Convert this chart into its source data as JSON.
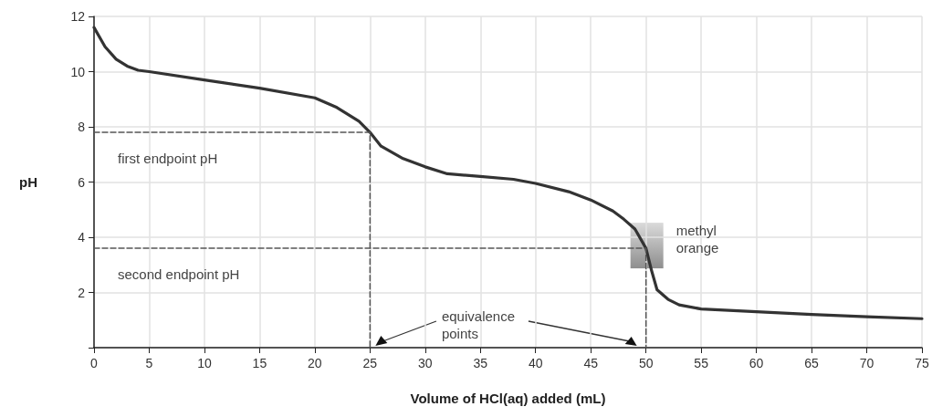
{
  "chart_data": {
    "type": "line",
    "xlabel": "Volume of HCl(aq) added (mL)",
    "ylabel": "pH",
    "xlim": [
      0,
      75
    ],
    "xticks": [
      0,
      5,
      10,
      15,
      20,
      25,
      30,
      35,
      40,
      45,
      50,
      55,
      60,
      65,
      70,
      75
    ],
    "ylim": [
      0,
      12
    ],
    "yticks": [
      {
        "value": 0,
        "label": null
      },
      2,
      4,
      6,
      8,
      10,
      12
    ],
    "grid": true,
    "marker": "none",
    "series": [
      {
        "color": "#333333",
        "x": [
          0,
          1,
          2,
          3,
          4,
          5,
          10,
          15,
          20,
          22,
          24,
          25,
          26,
          28,
          30,
          32,
          35,
          38,
          40,
          43,
          45,
          47,
          48,
          49,
          50,
          50.5,
          51,
          52,
          53,
          55,
          60,
          65,
          70,
          75
        ],
        "values": [
          11.6,
          10.9,
          10.45,
          10.2,
          10.05,
          10.0,
          9.7,
          9.4,
          9.05,
          8.7,
          8.2,
          7.8,
          7.3,
          6.85,
          6.55,
          6.3,
          6.2,
          6.1,
          5.95,
          5.65,
          5.35,
          4.95,
          4.65,
          4.3,
          3.6,
          2.8,
          2.1,
          1.75,
          1.55,
          1.4,
          1.3,
          1.2,
          1.12,
          1.05
        ]
      },
      {
        "color": "#555555",
        "line_style": "dashed",
        "x": [
          0,
          25,
          25
        ],
        "values": [
          7.8,
          7.8,
          0
        ]
      },
      {
        "color": "#555555",
        "line_style": "dashed",
        "x": [
          0,
          50,
          50
        ],
        "values": [
          3.6,
          3.6,
          0
        ]
      }
    ],
    "annotations": [
      "first endpoint pH",
      "second endpoint pH",
      "methyl orange",
      "equivalence points"
    ]
  }
}
